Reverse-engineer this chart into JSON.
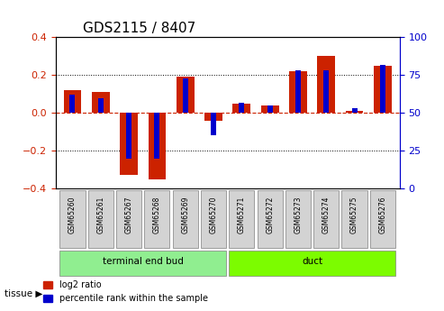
{
  "title": "GDS2115 / 8407",
  "samples": [
    "GSM65260",
    "GSM65261",
    "GSM65267",
    "GSM65268",
    "GSM65269",
    "GSM65270",
    "GSM65271",
    "GSM65272",
    "GSM65273",
    "GSM65274",
    "GSM65275",
    "GSM65276"
  ],
  "log2_ratio": [
    0.12,
    0.11,
    -0.33,
    -0.35,
    0.19,
    -0.04,
    0.05,
    0.04,
    0.22,
    0.3,
    0.01,
    0.25
  ],
  "percentile_rank": [
    62,
    60,
    20,
    20,
    73,
    35,
    57,
    55,
    78,
    78,
    53,
    82
  ],
  "groups": [
    {
      "label": "terminal end bud",
      "start": 0,
      "end": 6,
      "color": "#90EE90"
    },
    {
      "label": "duct",
      "start": 6,
      "end": 12,
      "color": "#7CFC00"
    }
  ],
  "ylim_left": [
    -0.4,
    0.4
  ],
  "ylim_right": [
    0,
    100
  ],
  "yticks_left": [
    -0.4,
    -0.2,
    0.0,
    0.2,
    0.4
  ],
  "yticks_right": [
    0,
    25,
    50,
    75,
    100
  ],
  "red_color": "#CC2200",
  "blue_color": "#0000CC",
  "group_label": "tissue",
  "legend_red": "log2 ratio",
  "legend_blue": "percentile rank within the sample",
  "bar_width": 0.35
}
